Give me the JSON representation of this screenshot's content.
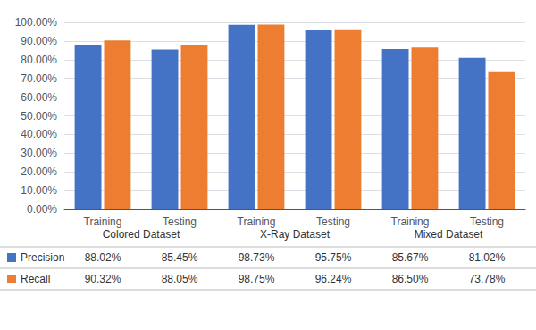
{
  "chart_data": {
    "type": "bar",
    "categories": [
      "Training",
      "Testing",
      "Training",
      "Testing",
      "Training",
      "Testing"
    ],
    "annotations": [
      "Colored Dataset",
      "X-Ray Dataset",
      "Mixed Dataset"
    ],
    "series": [
      {
        "name": "Precision",
        "color": "#4472C4",
        "values": [
          88.02,
          85.45,
          98.73,
          95.75,
          85.67,
          81.02
        ],
        "value_labels": [
          "88.02%",
          "85.45%",
          "98.73%",
          "95.75%",
          "85.67%",
          "81.02%"
        ]
      },
      {
        "name": "Recall",
        "color": "#ED7D31",
        "values": [
          90.32,
          88.05,
          98.75,
          96.24,
          86.5,
          73.78
        ],
        "value_labels": [
          "90.32%",
          "88.05%",
          "98.75%",
          "96.24%",
          "86.50%",
          "73.78%"
        ]
      }
    ],
    "ylim": [
      0,
      100
    ],
    "yticks": [
      {
        "value": 0,
        "label": "0.00%"
      },
      {
        "value": 10,
        "label": "10.00%"
      },
      {
        "value": 20,
        "label": "20.00%"
      },
      {
        "value": 30,
        "label": "30.00%"
      },
      {
        "value": 40,
        "label": "40.00%"
      },
      {
        "value": 50,
        "label": "50.00%"
      },
      {
        "value": 60,
        "label": "60.00%"
      },
      {
        "value": 70,
        "label": "70.00%"
      },
      {
        "value": 80,
        "label": "80.00%"
      },
      {
        "value": 90,
        "label": "90.00%"
      },
      {
        "value": 100,
        "label": "100.00%"
      }
    ],
    "grid": true
  }
}
